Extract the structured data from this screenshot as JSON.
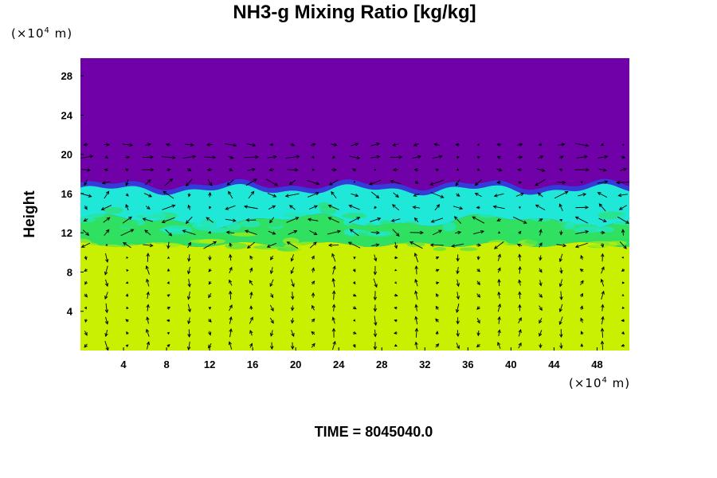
{
  "chart_data": {
    "type": "heatmap",
    "title": "NH3-g Mixing Ratio [kg/kg]",
    "xlabel": "",
    "ylabel": "Height",
    "x_unit": {
      "prefix": "(×10",
      "exp": "4",
      "suffix": " m)"
    },
    "y_unit": {
      "prefix": "(×10",
      "exp": "4",
      "suffix": " m)"
    },
    "footer": "TIME = 8045040.0",
    "xlim": [
      0,
      51
    ],
    "ylim": [
      0,
      29.8
    ],
    "x_ticks": [
      4,
      8,
      12,
      16,
      20,
      24,
      28,
      32,
      36,
      40,
      44,
      48
    ],
    "y_ticks": [
      4,
      8,
      12,
      16,
      20,
      24,
      28
    ],
    "colors": {
      "upper": "#7000a8",
      "boundary_blue": "#2a44e0",
      "cyan": "#20e8d8",
      "green": "#30e060",
      "lower": "#c8f000",
      "arrow": "#000000"
    },
    "layers": [
      {
        "name": "upper",
        "y_from": 17.0,
        "y_to": 29.8
      },
      {
        "name": "boundary",
        "y_from": 16.0,
        "y_to": 17.0
      },
      {
        "name": "cyan",
        "y_from": 13.2,
        "y_to": 16.0
      },
      {
        "name": "green",
        "y_from": 10.6,
        "y_to": 13.2
      },
      {
        "name": "lower",
        "y_from": 0,
        "y_to": 10.6
      }
    ],
    "overlay": "wind vectors"
  }
}
